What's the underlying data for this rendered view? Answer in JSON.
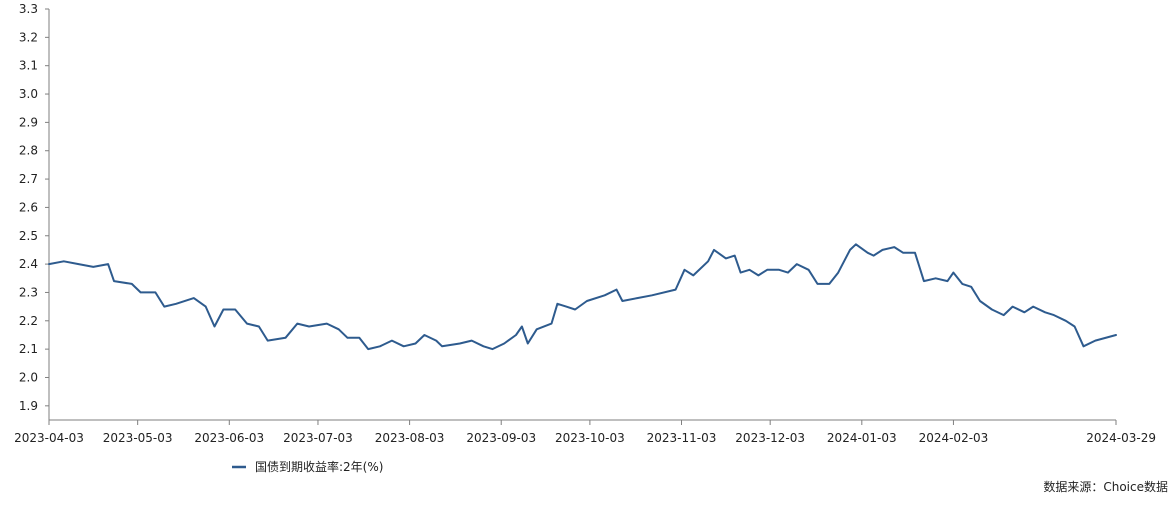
{
  "chart_data": {
    "type": "line",
    "title": "",
    "xlabel": "",
    "ylabel": "",
    "ylim": [
      1.85,
      3.3
    ],
    "yticks": [
      "3.3",
      "3.2",
      "3.1",
      "3.0",
      "2.9",
      "2.8",
      "2.7",
      "2.6",
      "2.5",
      "2.4",
      "2.3",
      "2.2",
      "2.1",
      "2.0",
      "1.9"
    ],
    "xticks": [
      "2023-04-03",
      "2023-05-03",
      "2023-06-03",
      "2023-07-03",
      "2023-08-03",
      "2023-09-03",
      "2023-10-03",
      "2023-11-03",
      "2023-12-03",
      "2024-01-03",
      "2024-02-03",
      "2024-03-29"
    ],
    "grid": false,
    "legend_position": "bottom",
    "source": "数据来源：Choice数据",
    "series": [
      {
        "name": "国债到期收益率:2年(%)",
        "color": "#2e5b8e",
        "points": [
          [
            "2023-04-03",
            2.4
          ],
          [
            "2023-04-08",
            2.41
          ],
          [
            "2023-04-13",
            2.4
          ],
          [
            "2023-04-18",
            2.39
          ],
          [
            "2023-04-23",
            2.4
          ],
          [
            "2023-04-25",
            2.34
          ],
          [
            "2023-05-01",
            2.33
          ],
          [
            "2023-05-04",
            2.3
          ],
          [
            "2023-05-09",
            2.3
          ],
          [
            "2023-05-12",
            2.25
          ],
          [
            "2023-05-16",
            2.26
          ],
          [
            "2023-05-22",
            2.28
          ],
          [
            "2023-05-26",
            2.25
          ],
          [
            "2023-05-29",
            2.18
          ],
          [
            "2023-06-01",
            2.24
          ],
          [
            "2023-06-05",
            2.24
          ],
          [
            "2023-06-09",
            2.19
          ],
          [
            "2023-06-13",
            2.18
          ],
          [
            "2023-06-16",
            2.13
          ],
          [
            "2023-06-22",
            2.14
          ],
          [
            "2023-06-26",
            2.19
          ],
          [
            "2023-06-30",
            2.18
          ],
          [
            "2023-07-06",
            2.19
          ],
          [
            "2023-07-10",
            2.17
          ],
          [
            "2023-07-13",
            2.14
          ],
          [
            "2023-07-17",
            2.14
          ],
          [
            "2023-07-20",
            2.1
          ],
          [
            "2023-07-24",
            2.11
          ],
          [
            "2023-07-28",
            2.13
          ],
          [
            "2023-08-01",
            2.11
          ],
          [
            "2023-08-05",
            2.12
          ],
          [
            "2023-08-08",
            2.15
          ],
          [
            "2023-08-12",
            2.13
          ],
          [
            "2023-08-14",
            2.11
          ],
          [
            "2023-08-20",
            2.12
          ],
          [
            "2023-08-24",
            2.13
          ],
          [
            "2023-08-28",
            2.11
          ],
          [
            "2023-08-31",
            2.1
          ],
          [
            "2023-09-04",
            2.12
          ],
          [
            "2023-09-08",
            2.15
          ],
          [
            "2023-09-10",
            2.18
          ],
          [
            "2023-09-12",
            2.12
          ],
          [
            "2023-09-15",
            2.17
          ],
          [
            "2023-09-20",
            2.19
          ],
          [
            "2023-09-22",
            2.26
          ],
          [
            "2023-09-25",
            2.25
          ],
          [
            "2023-09-28",
            2.24
          ],
          [
            "2023-10-02",
            2.27
          ],
          [
            "2023-10-08",
            2.29
          ],
          [
            "2023-10-12",
            2.31
          ],
          [
            "2023-10-14",
            2.27
          ],
          [
            "2023-10-19",
            2.28
          ],
          [
            "2023-10-24",
            2.29
          ],
          [
            "2023-11-01",
            2.31
          ],
          [
            "2023-11-04",
            2.38
          ],
          [
            "2023-11-07",
            2.36
          ],
          [
            "2023-11-12",
            2.41
          ],
          [
            "2023-11-14",
            2.45
          ],
          [
            "2023-11-18",
            2.42
          ],
          [
            "2023-11-21",
            2.43
          ],
          [
            "2023-11-23",
            2.37
          ],
          [
            "2023-11-26",
            2.38
          ],
          [
            "2023-11-29",
            2.36
          ],
          [
            "2023-12-02",
            2.38
          ],
          [
            "2023-12-06",
            2.38
          ],
          [
            "2023-12-09",
            2.37
          ],
          [
            "2023-12-12",
            2.4
          ],
          [
            "2023-12-16",
            2.38
          ],
          [
            "2023-12-19",
            2.33
          ],
          [
            "2023-12-23",
            2.33
          ],
          [
            "2023-12-26",
            2.37
          ],
          [
            "2023-12-30",
            2.45
          ],
          [
            "2024-01-01",
            2.47
          ],
          [
            "2024-01-05",
            2.44
          ],
          [
            "2024-01-07",
            2.43
          ],
          [
            "2024-01-10",
            2.45
          ],
          [
            "2024-01-14",
            2.46
          ],
          [
            "2024-01-17",
            2.44
          ],
          [
            "2024-01-21",
            2.44
          ],
          [
            "2024-01-24",
            2.34
          ],
          [
            "2024-01-28",
            2.35
          ],
          [
            "2024-02-01",
            2.34
          ],
          [
            "2024-02-03",
            2.37
          ],
          [
            "2024-02-06",
            2.33
          ],
          [
            "2024-02-09",
            2.32
          ],
          [
            "2024-02-12",
            2.27
          ],
          [
            "2024-02-16",
            2.24
          ],
          [
            "2024-02-20",
            2.22
          ],
          [
            "2024-02-23",
            2.25
          ],
          [
            "2024-02-27",
            2.23
          ],
          [
            "2024-03-01",
            2.25
          ],
          [
            "2024-03-05",
            2.23
          ],
          [
            "2024-03-08",
            2.22
          ],
          [
            "2024-03-12",
            2.2
          ],
          [
            "2024-03-15",
            2.18
          ],
          [
            "2024-03-18",
            2.11
          ],
          [
            "2024-03-22",
            2.13
          ],
          [
            "2024-03-29",
            2.15
          ]
        ]
      }
    ]
  }
}
